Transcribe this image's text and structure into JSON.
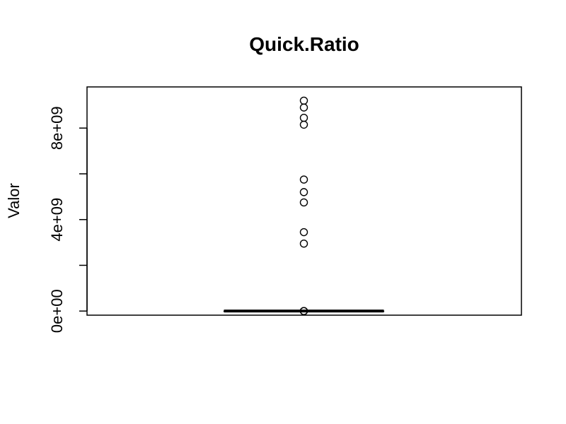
{
  "chart_data": {
    "type": "boxplot",
    "title": "Quick.Ratio",
    "xlabel": "",
    "ylabel": "Valor",
    "ylim": [
      -180000000,
      9800000000
    ],
    "yticks": [
      0,
      2000000000,
      4000000000,
      6000000000,
      8000000000
    ],
    "ytick_labels": [
      "0e+00",
      "",
      "4e+09",
      "",
      "8e+09"
    ],
    "box": {
      "min": 0,
      "q1": 0,
      "median": 0,
      "q3": 0,
      "max": 0
    },
    "outliers": [
      9200000000,
      8900000000,
      8450000000,
      8150000000,
      5750000000,
      5200000000,
      4750000000,
      3450000000,
      2950000000,
      0,
      0,
      0
    ],
    "grid": false,
    "legend": "none"
  }
}
